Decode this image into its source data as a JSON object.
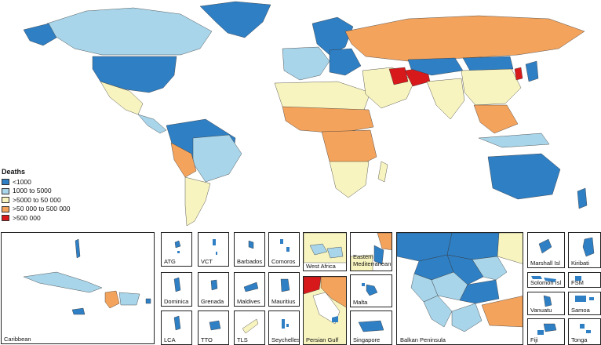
{
  "legend": {
    "title": "Deaths",
    "items": [
      {
        "label": "<1000",
        "color": "#2f7fc4"
      },
      {
        "label": "1000 to 5000",
        "color": "#a8d5ea"
      },
      {
        "label": ">5000 to 50 000",
        "color": "#f8f4c0"
      },
      {
        "label": ">50 000 to 500 000",
        "color": "#f4a35c"
      },
      {
        "label": ">500 000",
        "color": "#d7191c"
      }
    ]
  },
  "insets": {
    "caribbean": "Caribbean",
    "atg": "ATG",
    "vct": "VCT",
    "barbados": "Barbados",
    "comoros": "Comoros",
    "dominica": "Dominica",
    "grenada": "Grenada",
    "maldives": "Maldives",
    "mauritius": "Mauritius",
    "lca": "LCA",
    "tto": "TTO",
    "tls": "TLS",
    "seychelles": "Seychelles",
    "west_africa": "West Africa",
    "eastern_med": "Eastern Mediterranean",
    "malta": "Malta",
    "persian_gulf": "Persian Gulf",
    "singapore": "Singapore",
    "balkan": "Balkan Peninsula",
    "marshall": "Marshall Isl",
    "kiribati": "Kiribati",
    "solomon": "Solomon Isl",
    "fsm": "FSM",
    "vanuatu": "Vanuatu",
    "samoa": "Samoa",
    "fiji": "Fiji",
    "tonga": "Tonga"
  }
}
